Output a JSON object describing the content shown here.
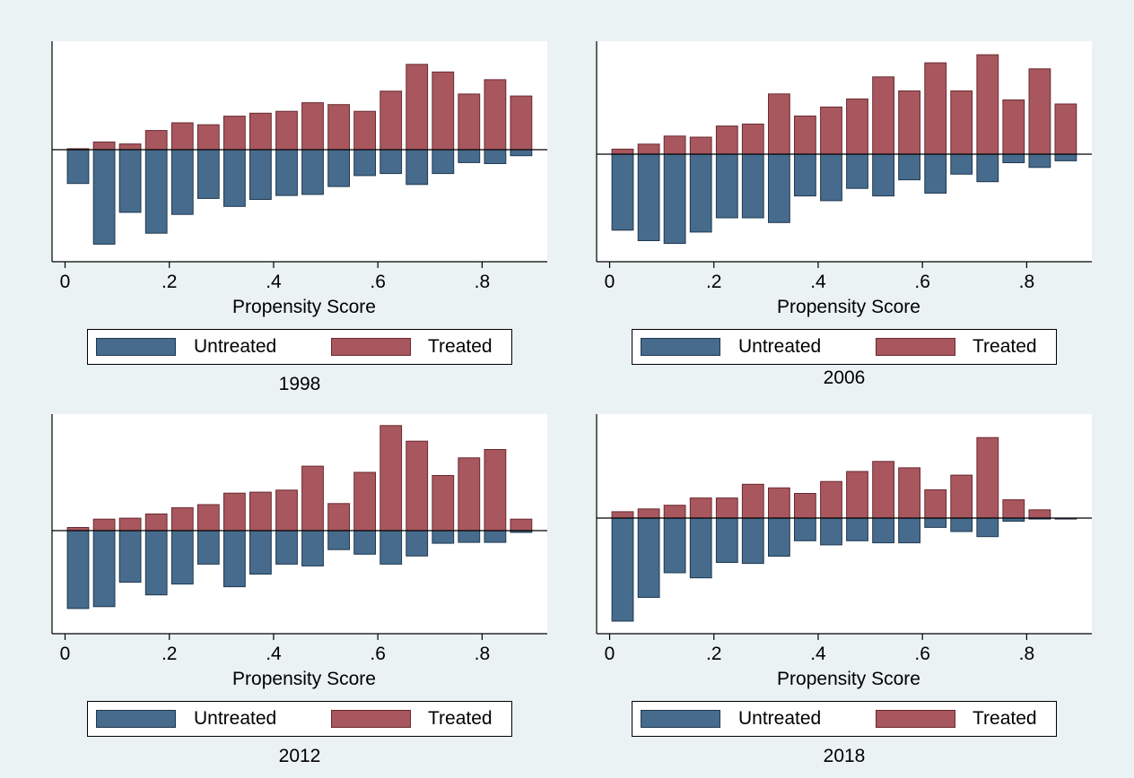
{
  "figure": {
    "background": "#eaf2f3",
    "plot_background": "#ffffff"
  },
  "colors": {
    "untreated": "#476b8c",
    "treated": "#a8575e",
    "untreated_edge": "#1e3850",
    "treated_edge": "#6a2a30"
  },
  "legend": {
    "untreated_label": "Untreated",
    "treated_label": "Treated"
  },
  "chart_data": [
    {
      "type": "bar",
      "title": "1998",
      "xlabel": "Propensity Score",
      "ylabel": "",
      "xlim": [
        -0.025,
        0.925
      ],
      "xticks": [
        "0",
        ".2",
        ".4",
        ".6",
        ".8"
      ],
      "ylim": [
        -100,
        100
      ],
      "y_ticks_shown": false,
      "bin_width": 0.05,
      "x": [
        0.025,
        0.075,
        0.125,
        0.175,
        0.225,
        0.275,
        0.325,
        0.375,
        0.425,
        0.475,
        0.525,
        0.575,
        0.625,
        0.675,
        0.725,
        0.775,
        0.825,
        0.875
      ],
      "series": [
        {
          "name": "Untreated",
          "values": [
            -34,
            -95,
            -63,
            -84,
            -65,
            -49,
            -57,
            -50,
            -46,
            -45,
            -37,
            -26,
            -24,
            -35,
            -24,
            -13,
            -14,
            -6
          ]
        },
        {
          "name": "Treated",
          "values": [
            1,
            8,
            6,
            20,
            28,
            26,
            35,
            38,
            40,
            49,
            47,
            40,
            61,
            89,
            81,
            58,
            73,
            56
          ]
        }
      ],
      "legend": [
        "Untreated",
        "Treated"
      ]
    },
    {
      "type": "bar",
      "title": "2006",
      "xlabel": "Propensity Score",
      "ylabel": "",
      "xlim": [
        -0.025,
        0.925
      ],
      "xticks": [
        "0",
        ".2",
        ".4",
        ".6",
        ".8"
      ],
      "ylim": [
        -100,
        100
      ],
      "y_ticks_shown": false,
      "bin_width": 0.05,
      "x": [
        0.025,
        0.075,
        0.125,
        0.175,
        0.225,
        0.275,
        0.325,
        0.375,
        0.425,
        0.475,
        0.525,
        0.575,
        0.625,
        0.675,
        0.725,
        0.775,
        0.825,
        0.875
      ],
      "series": [
        {
          "name": "Untreated",
          "values": [
            -80,
            -91,
            -94,
            -82,
            -67,
            -67,
            -72,
            -44,
            -49,
            -36,
            -44,
            -27,
            -41,
            -21,
            -29,
            -9,
            -14,
            -7
          ]
        },
        {
          "name": "Treated",
          "values": [
            5,
            10,
            18,
            17,
            28,
            30,
            60,
            38,
            47,
            55,
            77,
            63,
            91,
            63,
            99,
            54,
            85,
            50
          ]
        }
      ],
      "legend": [
        "Untreated",
        "Treated"
      ]
    },
    {
      "type": "bar",
      "title": "2012",
      "xlabel": "Propensity Score",
      "ylabel": "",
      "xlim": [
        -0.025,
        0.925
      ],
      "xticks": [
        "0",
        ".2",
        ".4",
        ".6",
        ".8"
      ],
      "ylim": [
        -100,
        100
      ],
      "y_ticks_shown": false,
      "bin_width": 0.05,
      "x": [
        0.025,
        0.075,
        0.125,
        0.175,
        0.225,
        0.275,
        0.325,
        0.375,
        0.425,
        0.475,
        0.525,
        0.575,
        0.625,
        0.675,
        0.725,
        0.775,
        0.825,
        0.875
      ],
      "series": [
        {
          "name": "Untreated",
          "values": [
            -86,
            -84,
            -57,
            -71,
            -59,
            -37,
            -62,
            -48,
            -37,
            -39,
            -21,
            -26,
            -37,
            -28,
            -14,
            -13,
            -13,
            -2
          ]
        },
        {
          "name": "Treated",
          "values": [
            3,
            11,
            12,
            16,
            22,
            25,
            36,
            37,
            39,
            62,
            26,
            56,
            101,
            86,
            53,
            70,
            78,
            11
          ]
        }
      ],
      "legend": [
        "Untreated",
        "Treated"
      ]
    },
    {
      "type": "bar",
      "title": "2018",
      "xlabel": "Propensity Score",
      "ylabel": "",
      "xlim": [
        -0.025,
        0.925
      ],
      "xticks": [
        "0",
        ".2",
        ".4",
        ".6",
        ".8"
      ],
      "ylim": [
        -100,
        100
      ],
      "y_ticks_shown": false,
      "bin_width": 0.05,
      "x": [
        0.025,
        0.075,
        0.125,
        0.175,
        0.225,
        0.275,
        0.325,
        0.375,
        0.425,
        0.475,
        0.525,
        0.575,
        0.625,
        0.675,
        0.725,
        0.775,
        0.825,
        0.875
      ],
      "series": [
        {
          "name": "Untreated",
          "values": [
            -100,
            -77,
            -53,
            -58,
            -43,
            -44,
            -37,
            -22,
            -26,
            -22,
            -24,
            -24,
            -9,
            -13,
            -18,
            -3,
            -1,
            -1
          ]
        },
        {
          "name": "Treated",
          "values": [
            7,
            10,
            14,
            22,
            22,
            37,
            33,
            27,
            40,
            51,
            62,
            55,
            31,
            47,
            88,
            20,
            9,
            0
          ]
        }
      ],
      "legend": [
        "Untreated",
        "Treated"
      ]
    }
  ]
}
